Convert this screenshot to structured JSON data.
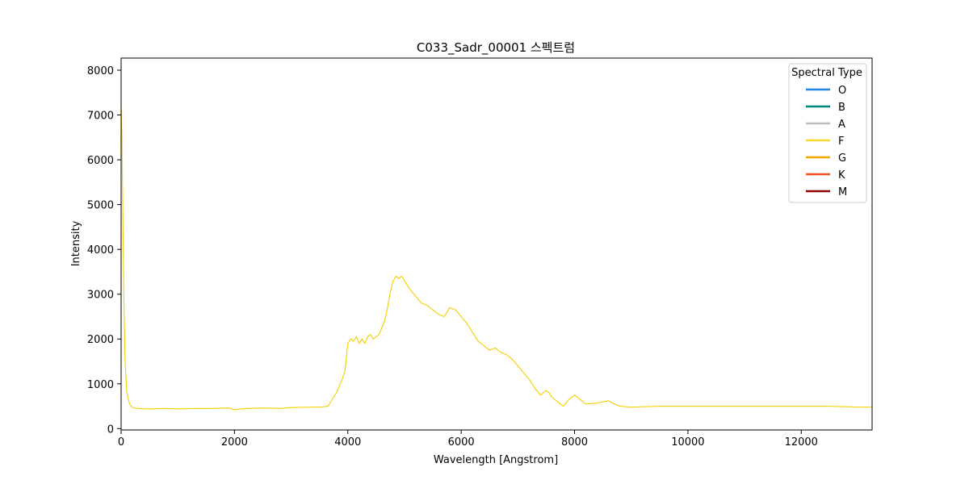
{
  "chart_data": {
    "type": "line",
    "title": "C033_Sadr_00001 스펙트럼",
    "xlabel": "Wavelength [Angstrom]",
    "ylabel": "Intensity",
    "xlim": [
      0,
      13250
    ],
    "ylim": [
      -30,
      8270
    ],
    "xticks": [
      0,
      2000,
      4000,
      6000,
      8000,
      10000,
      12000
    ],
    "xtick_labels": [
      "0",
      "2000",
      "4000",
      "6000",
      "8000",
      "10000",
      "12000"
    ],
    "yticks": [
      0,
      1000,
      2000,
      3000,
      4000,
      5000,
      6000,
      7000,
      8000
    ],
    "ytick_labels": [
      "0",
      "1000",
      "2000",
      "3000",
      "4000",
      "5000",
      "6000",
      "7000",
      "8000"
    ],
    "grid": false,
    "legend": {
      "title": "Spectral Type",
      "placement": "top-right",
      "entries": [
        {
          "label": "O",
          "color": "#1e88e5"
        },
        {
          "label": "B",
          "color": "#00897b"
        },
        {
          "label": "A",
          "color": "#bdbdbd"
        },
        {
          "label": "F",
          "color": "#fdd835"
        },
        {
          "label": "G",
          "color": "#f4a900"
        },
        {
          "label": "K",
          "color": "#f4511e"
        },
        {
          "label": "M",
          "color": "#8b0000"
        }
      ]
    },
    "series": [
      {
        "color": "#f5d20f",
        "x": [
          0,
          15,
          30,
          50,
          70,
          100,
          150,
          200,
          300,
          500,
          800,
          1000,
          1300,
          1600,
          1900,
          2000,
          2200,
          2500,
          2800,
          3000,
          3300,
          3500,
          3650,
          3700,
          3750,
          3800,
          3850,
          3900,
          3950,
          4000,
          4050,
          4100,
          4150,
          4200,
          4250,
          4300,
          4350,
          4400,
          4450,
          4500,
          4550,
          4600,
          4650,
          4700,
          4750,
          4800,
          4850,
          4900,
          4950,
          5000,
          5100,
          5200,
          5300,
          5400,
          5500,
          5600,
          5700,
          5800,
          5900,
          6000,
          6100,
          6200,
          6300,
          6400,
          6500,
          6600,
          6700,
          6800,
          6900,
          7000,
          7100,
          7200,
          7300,
          7400,
          7500,
          7550,
          7600,
          7700,
          7800,
          7900,
          8000,
          8100,
          8200,
          8300,
          8400,
          8500,
          8600,
          8700,
          8800,
          9000,
          9500,
          10000,
          10500,
          11000,
          11500,
          12000,
          12500,
          13000,
          13250
        ],
        "y": [
          7200,
          6500,
          4800,
          2800,
          1500,
          800,
          550,
          470,
          450,
          440,
          450,
          440,
          450,
          450,
          460,
          420,
          450,
          460,
          450,
          470,
          480,
          480,
          500,
          600,
          700,
          800,
          950,
          1100,
          1300,
          1900,
          2000,
          1950,
          2050,
          1900,
          2000,
          1900,
          2050,
          2100,
          2000,
          2050,
          2100,
          2250,
          2400,
          2700,
          3050,
          3300,
          3400,
          3350,
          3400,
          3300,
          3100,
          2950,
          2800,
          2750,
          2650,
          2550,
          2500,
          2700,
          2650,
          2500,
          2350,
          2150,
          1950,
          1850,
          1750,
          1800,
          1700,
          1650,
          1550,
          1400,
          1250,
          1100,
          900,
          750,
          850,
          800,
          700,
          600,
          500,
          650,
          750,
          650,
          550,
          560,
          570,
          600,
          620,
          550,
          500,
          480,
          500,
          500,
          500,
          500,
          500,
          500,
          500,
          480,
          480
        ]
      }
    ]
  }
}
